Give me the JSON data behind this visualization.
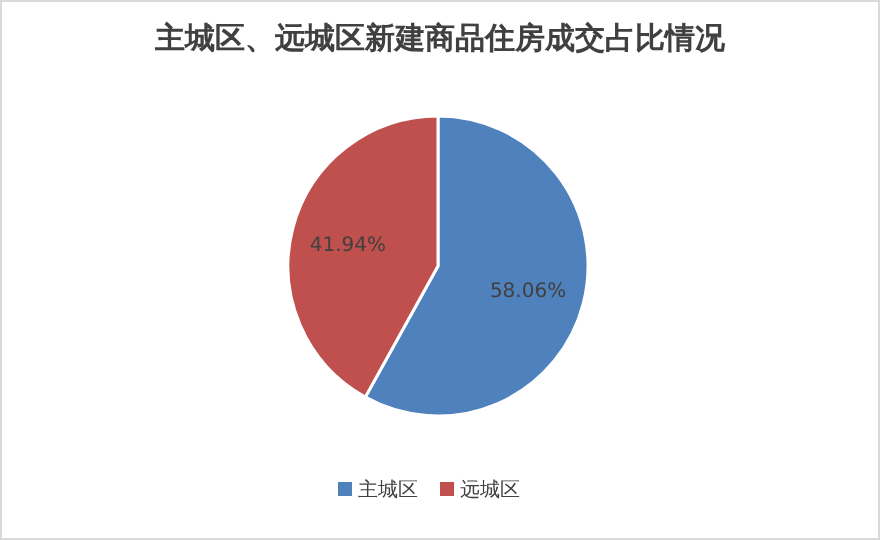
{
  "chart_data": {
    "type": "pie",
    "title": "主城区、远城区新建商品住房成交占比情况",
    "categories": [
      "主城区",
      "远城区"
    ],
    "values": [
      58.06,
      41.94
    ],
    "colors": [
      "#4f81bd",
      "#c0504d"
    ],
    "value_labels": [
      "58.06%",
      "41.94%"
    ],
    "legend": "bottom"
  }
}
